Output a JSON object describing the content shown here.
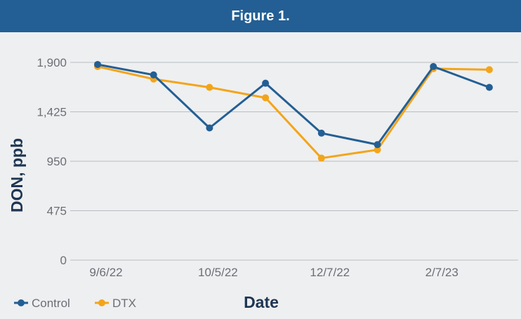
{
  "header": {
    "title": "Figure 1."
  },
  "chart_data": {
    "type": "line",
    "title": "Figure 1.",
    "xlabel": "Date",
    "ylabel": "DON, ppb",
    "ylim": [
      0,
      1900
    ],
    "yticks": [
      0,
      475,
      950,
      1425,
      1900
    ],
    "ytick_labels": [
      "0",
      "475",
      "950",
      "1,425",
      "1,900"
    ],
    "x_tick_labels": [
      "9/6/22",
      "10/5/22",
      "12/7/22",
      "2/7/23"
    ],
    "x_tick_indices": [
      0,
      2,
      4,
      6
    ],
    "grid": true,
    "legend_position": "bottom-left",
    "series": [
      {
        "name": "Control",
        "color": "#235f94",
        "values": [
          1880,
          1780,
          1270,
          1700,
          1220,
          1110,
          1860,
          1660
        ]
      },
      {
        "name": "DTX",
        "color": "#f3a519",
        "values": [
          1860,
          1740,
          1660,
          1560,
          980,
          1060,
          1840,
          1830
        ]
      }
    ]
  }
}
